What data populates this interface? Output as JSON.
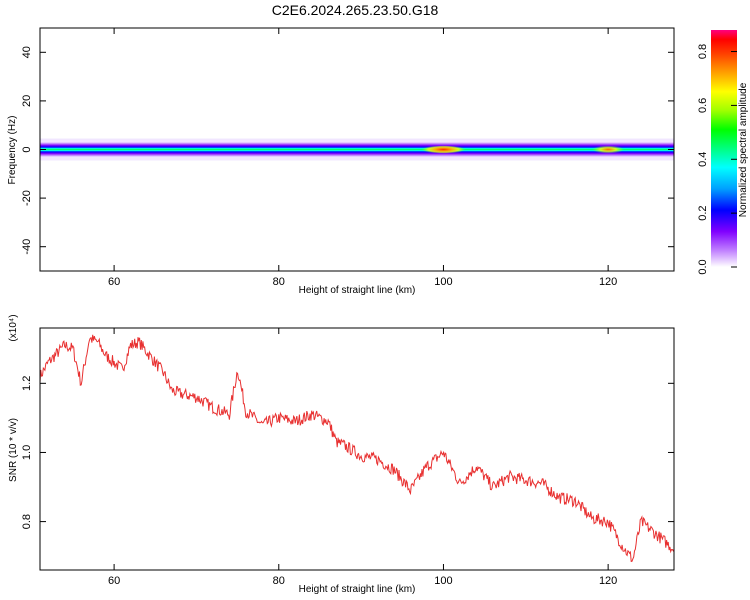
{
  "title": "C2E6.2024.265.23.50.G18",
  "colors": {
    "spectrum_line": "#e83030",
    "axis": "#000000",
    "background": "#ffffff"
  },
  "chart_data": [
    {
      "type": "heatmap",
      "xlabel": "Height of straight line (km)",
      "ylabel": "Frequency (Hz)",
      "xlim": [
        51,
        128
      ],
      "ylim": [
        -50,
        50
      ],
      "xticks": [
        60,
        80,
        100,
        120
      ],
      "yticks": [
        40,
        20,
        0,
        -20,
        -40
      ],
      "colorbar": {
        "label": "Normalized spectral amplitude",
        "range": [
          0.0,
          0.88
        ],
        "ticks": [
          0.0,
          0.2,
          0.4,
          0.6,
          0.8
        ],
        "colors": [
          "#ffffff",
          "#c080ff",
          "#8000ff",
          "#0000ff",
          "#00a0ff",
          "#00ffff",
          "#00ff80",
          "#00ff00",
          "#a0ff00",
          "#ffff00",
          "#ffa000",
          "#ff4000",
          "#ff0000",
          "#ff0080"
        ]
      },
      "band": {
        "center_hz": 0,
        "half_width_hz": 3,
        "hotspots": [
          {
            "x_km": 100,
            "amplitude": 0.85
          },
          {
            "x_km": 120,
            "amplitude": 0.7
          }
        ]
      }
    },
    {
      "type": "line",
      "xlabel": "Height of straight line (km)",
      "ylabel": "SNR (10 * v/v)",
      "y_multiplier": "(x10⁴)",
      "xlim": [
        51,
        128
      ],
      "ylim": [
        0.66,
        1.36
      ],
      "xticks": [
        60,
        80,
        100,
        120
      ],
      "yticks": [
        1.2,
        1.0,
        0.8
      ],
      "series": [
        {
          "x": [
            51,
            52,
            54,
            55,
            56,
            57,
            58,
            59,
            60,
            61,
            62,
            63,
            64,
            65,
            66,
            67,
            68,
            70,
            72,
            74,
            75,
            76,
            78,
            80,
            82,
            84,
            86,
            87,
            88,
            90,
            92,
            94,
            96,
            98,
            100,
            102,
            104,
            106,
            108,
            110,
            112,
            114,
            116,
            118,
            120,
            122,
            123,
            124,
            126,
            128
          ],
          "y": [
            1.22,
            1.26,
            1.31,
            1.3,
            1.2,
            1.33,
            1.32,
            1.28,
            1.26,
            1.24,
            1.31,
            1.32,
            1.29,
            1.26,
            1.23,
            1.18,
            1.17,
            1.16,
            1.13,
            1.11,
            1.24,
            1.12,
            1.08,
            1.1,
            1.09,
            1.11,
            1.09,
            1.03,
            1.02,
            0.99,
            0.98,
            0.95,
            0.89,
            0.96,
            1.0,
            0.91,
            0.96,
            0.9,
            0.93,
            0.92,
            0.91,
            0.87,
            0.86,
            0.81,
            0.8,
            0.72,
            0.69,
            0.8,
            0.76,
            0.72
          ]
        }
      ]
    }
  ]
}
